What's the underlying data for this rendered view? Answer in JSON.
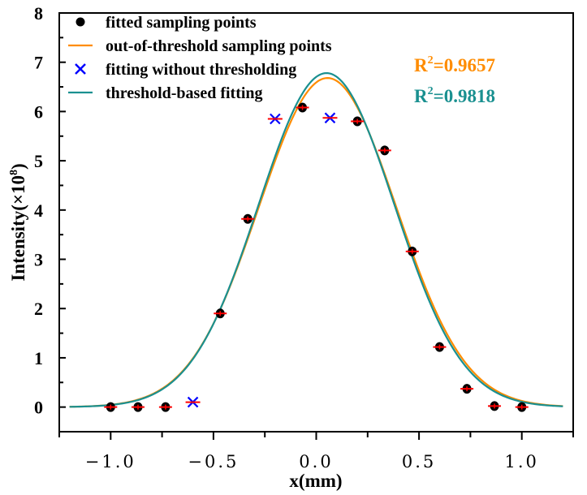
{
  "chart_data": {
    "type": "scatter",
    "xlabel": "x(mm)",
    "ylabel_main": "Intensity(×10",
    "ylabel_sup": "8",
    "ylabel_end": ")",
    "xlim": [
      -1.25,
      1.25
    ],
    "ylim": [
      -0.5,
      8
    ],
    "xticks": [
      -1.0,
      -0.5,
      0.0,
      0.5,
      1.0
    ],
    "xtick_labels": [
      "−1.0",
      "−0.5",
      "0.0",
      "0.5",
      "1.0"
    ],
    "yticks": [
      0,
      1,
      2,
      3,
      4,
      5,
      6,
      7,
      8
    ],
    "ytick_labels": [
      "0",
      "1",
      "2",
      "3",
      "4",
      "5",
      "6",
      "7",
      "8"
    ],
    "grid": false,
    "legend_placement": "top-left",
    "legend": [
      {
        "label": "fitted sampling points",
        "marker": "circle",
        "color": "#000000"
      },
      {
        "label": "out-of-threshold sampling points",
        "marker": "line",
        "color": "#FF8C00"
      },
      {
        "label": "fitting without thresholding",
        "marker": "x",
        "color": "#0000FF"
      },
      {
        "label": "threshold-based fitting",
        "marker": "line",
        "color": "#1A9090"
      }
    ],
    "series": [
      {
        "name": "fitted sampling points",
        "kind": "points",
        "color": "#000000",
        "errorbar_color": "#FF0000",
        "x": [
          -1.0,
          -0.867,
          -0.733,
          -0.467,
          -0.333,
          -0.067,
          0.2,
          0.333,
          0.467,
          0.6,
          0.733,
          0.867,
          1.0
        ],
        "y": [
          0.0,
          0.0,
          0.0,
          1.9,
          3.82,
          6.08,
          5.8,
          5.21,
          3.16,
          1.22,
          0.37,
          0.02,
          0.0
        ]
      },
      {
        "name": "fitting without thresholding",
        "kind": "x-markers",
        "color": "#0000FF",
        "errorbar_color": "#FF0000",
        "x": [
          -0.6,
          -0.2,
          0.067
        ],
        "y": [
          0.1,
          5.85,
          5.87
        ]
      },
      {
        "name": "out-of-threshold sampling points",
        "kind": "gaussian-curve",
        "color": "#FF8C00",
        "amplitude": 6.68,
        "center": 0.055,
        "sigma": 0.335,
        "baseline": 0.0,
        "x_range": [
          -1.2,
          1.2
        ]
      },
      {
        "name": "threshold-based fitting",
        "kind": "gaussian-curve",
        "color": "#1A9090",
        "amplitude": 6.78,
        "center": 0.05,
        "sigma": 0.33,
        "baseline": 0.0,
        "x_range": [
          -1.2,
          1.2
        ]
      }
    ],
    "annotations": [
      {
        "text_main": "R",
        "sup": "2",
        "text_end": "=0.9657",
        "color": "#FF8C00"
      },
      {
        "text_main": "R",
        "sup": "2",
        "text_end": "=0.9818",
        "color": "#1A9090"
      }
    ]
  }
}
